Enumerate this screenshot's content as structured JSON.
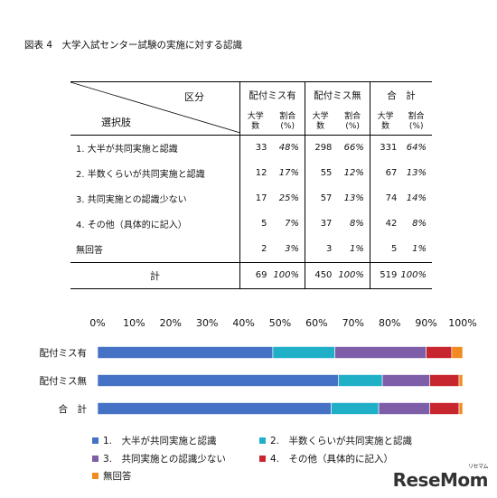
{
  "figure_title": "図表 4　大学入試センター試験の実施に対する認識",
  "table": {
    "header_kubun": "区分",
    "header_sentakushi": "選択肢",
    "groups": [
      "配付ミス有",
      "配付ミス無",
      "合　計"
    ],
    "sub_count": "大学数",
    "sub_ratio": "割合(%)",
    "rows": [
      {
        "label": "1. 大半が共同実施と認識",
        "values": [
          "33",
          "48%",
          "298",
          "66%",
          "331",
          "64%"
        ]
      },
      {
        "label": "2. 半数くらいが共同実施と認識",
        "values": [
          "12",
          "17%",
          "55",
          "12%",
          "67",
          "13%"
        ]
      },
      {
        "label": "3. 共同実施との認識少ない",
        "values": [
          "17",
          "25%",
          "57",
          "13%",
          "74",
          "14%"
        ]
      },
      {
        "label": "4. その他（具体的に記入）",
        "values": [
          "5",
          "7%",
          "37",
          "8%",
          "42",
          "8%"
        ]
      },
      {
        "label": "無回答",
        "values": [
          "2",
          "3%",
          "3",
          "1%",
          "5",
          "1%"
        ]
      }
    ],
    "total_label": "計",
    "total_values": [
      "69",
      "100%",
      "450",
      "100%",
      "519",
      "100%"
    ]
  },
  "chart_data": {
    "type": "bar",
    "orientation": "horizontal-stacked-100",
    "categories": [
      "配付ミス有",
      "配付ミス無",
      "合　計"
    ],
    "xlim": [
      0,
      100
    ],
    "x_ticks": [
      "0%",
      "10%",
      "20%",
      "30%",
      "40%",
      "50%",
      "60%",
      "70%",
      "80%",
      "90%",
      "100%"
    ],
    "series": [
      {
        "name": "1.　大半が共同実施と認識",
        "values": [
          48,
          66,
          64
        ],
        "color": "#4572c4"
      },
      {
        "name": "2.　半数くらいが共同実施と認識",
        "values": [
          17,
          12,
          13
        ],
        "color": "#1fb0c8"
      },
      {
        "name": "3.　共同実施との認識少ない",
        "values": [
          25,
          13,
          14
        ],
        "color": "#7e5ea8"
      },
      {
        "name": "4.　その他（具体的に記入）",
        "values": [
          7,
          8,
          8
        ],
        "color": "#c8262e"
      },
      {
        "name": "無回答",
        "values": [
          3,
          1,
          1
        ],
        "color": "#f08b22"
      }
    ],
    "legend_position": "bottom",
    "grid": false
  },
  "watermark": {
    "text": "ReseMom",
    "small": "リセマム"
  }
}
